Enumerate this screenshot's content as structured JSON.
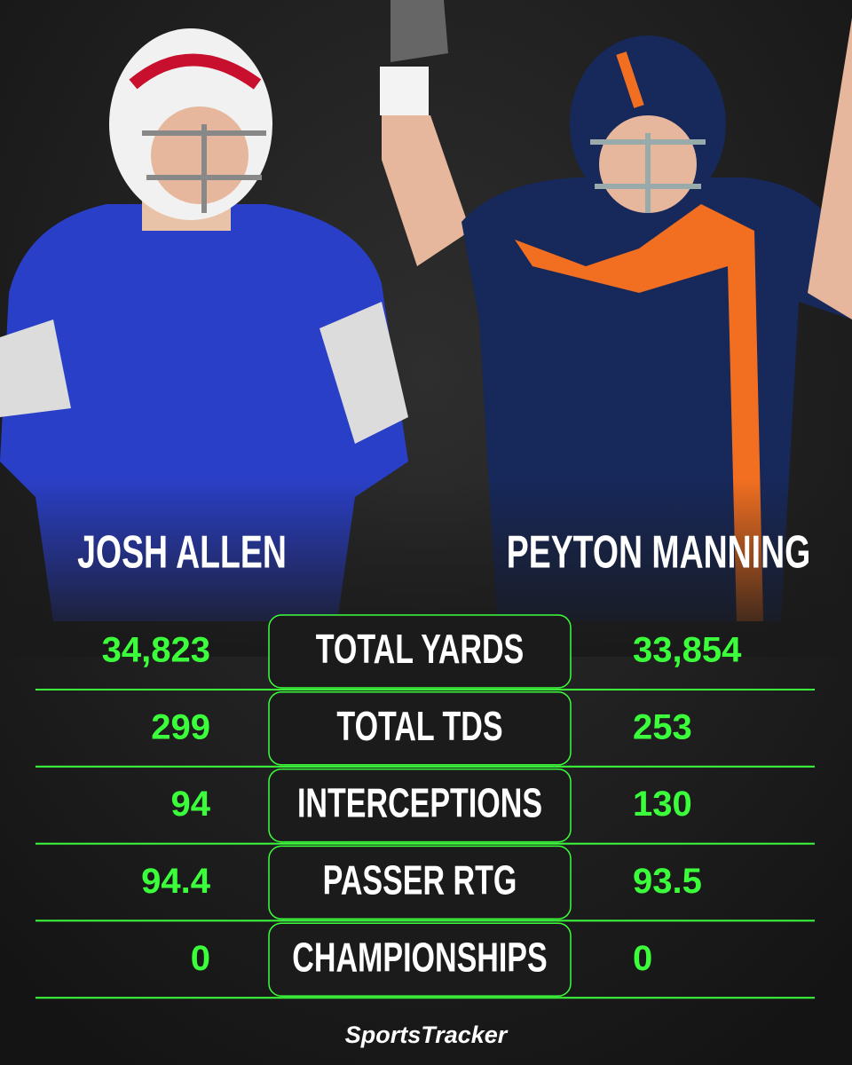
{
  "players": [
    {
      "name": "JOSH ALLEN"
    },
    {
      "name": "PEYTON MANNING"
    }
  ],
  "stats": [
    {
      "label": "TOTAL YARDS",
      "left": "34,823",
      "right": "33,854"
    },
    {
      "label": "TOTAL TDS",
      "left": "299",
      "right": "253"
    },
    {
      "label": "INTERCEPTIONS",
      "left": "94",
      "right": "130"
    },
    {
      "label": "PASSER RTG",
      "left": "94.4",
      "right": "93.5"
    },
    {
      "label": "CHAMPIONSHIPS",
      "left": "0",
      "right": "0"
    }
  ],
  "footer": {
    "brand": "SportsTracker"
  }
}
